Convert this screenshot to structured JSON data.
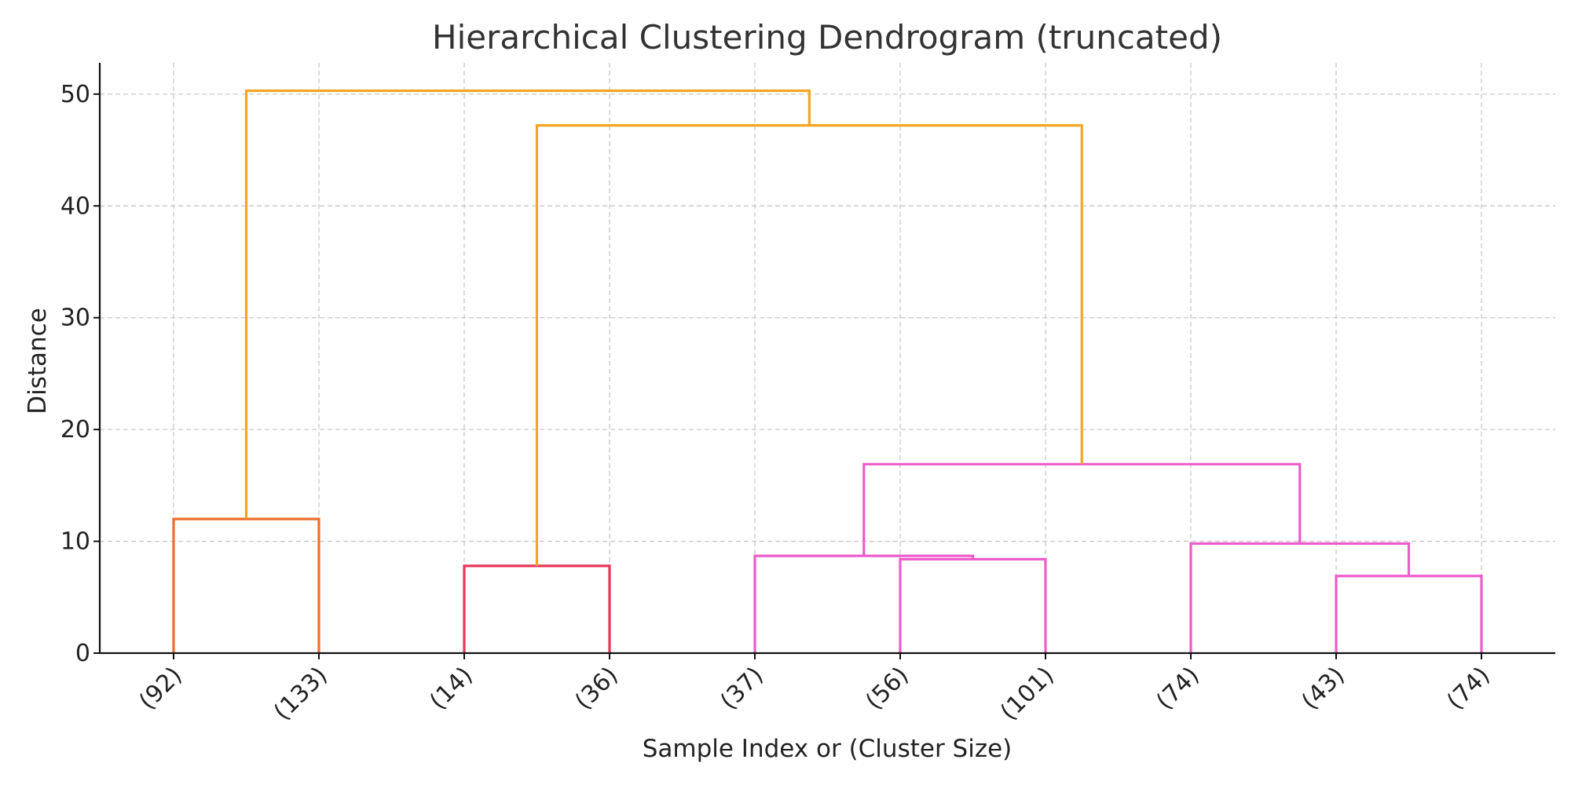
{
  "chart_data": {
    "type": "dendrogram",
    "title": "Hierarchical Clustering Dendrogram (truncated)",
    "xlabel": "Sample Index or (Cluster Size)",
    "ylabel": "Distance",
    "ylim": [
      0,
      52.8
    ],
    "yticks": [
      0,
      10,
      20,
      30,
      40,
      50
    ],
    "grid": true,
    "leaves": [
      "(92)",
      "(133)",
      "(14)",
      "(36)",
      "(37)",
      "(56)",
      "(101)",
      "(74)",
      "(43)",
      "(74)"
    ],
    "links": [
      {
        "left_x": 0,
        "left_y": 0,
        "right_x": 1,
        "right_y": 0,
        "height": 12.0,
        "color": "#ef6c2e"
      },
      {
        "left_x": 2,
        "left_y": 0,
        "right_x": 3,
        "right_y": 0,
        "height": 7.8,
        "color": "#e8365a"
      },
      {
        "left_x": 5,
        "left_y": 0,
        "right_x": 6,
        "right_y": 0,
        "height": 8.4,
        "color": "#ee5ccc"
      },
      {
        "left_x": 4,
        "left_y": 0,
        "right_x": 5.5,
        "right_y": 8.4,
        "height": 8.7,
        "color": "#ee5ccc"
      },
      {
        "left_x": 8,
        "left_y": 0,
        "right_x": 9,
        "right_y": 0,
        "height": 6.9,
        "color": "#ee5ccc"
      },
      {
        "left_x": 7,
        "left_y": 0,
        "right_x": 8.5,
        "right_y": 6.9,
        "height": 9.8,
        "color": "#ee5ccc"
      },
      {
        "left_x": 4.75,
        "left_y": 8.7,
        "right_x": 7.75,
        "right_y": 9.8,
        "height": 16.9,
        "color": "#ee5ccc"
      },
      {
        "left_x": 2.5,
        "left_y": 7.8,
        "right_x": 6.25,
        "right_y": 16.9,
        "height": 47.2,
        "color": "#f5a623"
      },
      {
        "left_x": 0.5,
        "left_y": 12.0,
        "right_x": 4.375,
        "right_y": 47.2,
        "height": 50.3,
        "color": "#f5a623"
      }
    ]
  }
}
